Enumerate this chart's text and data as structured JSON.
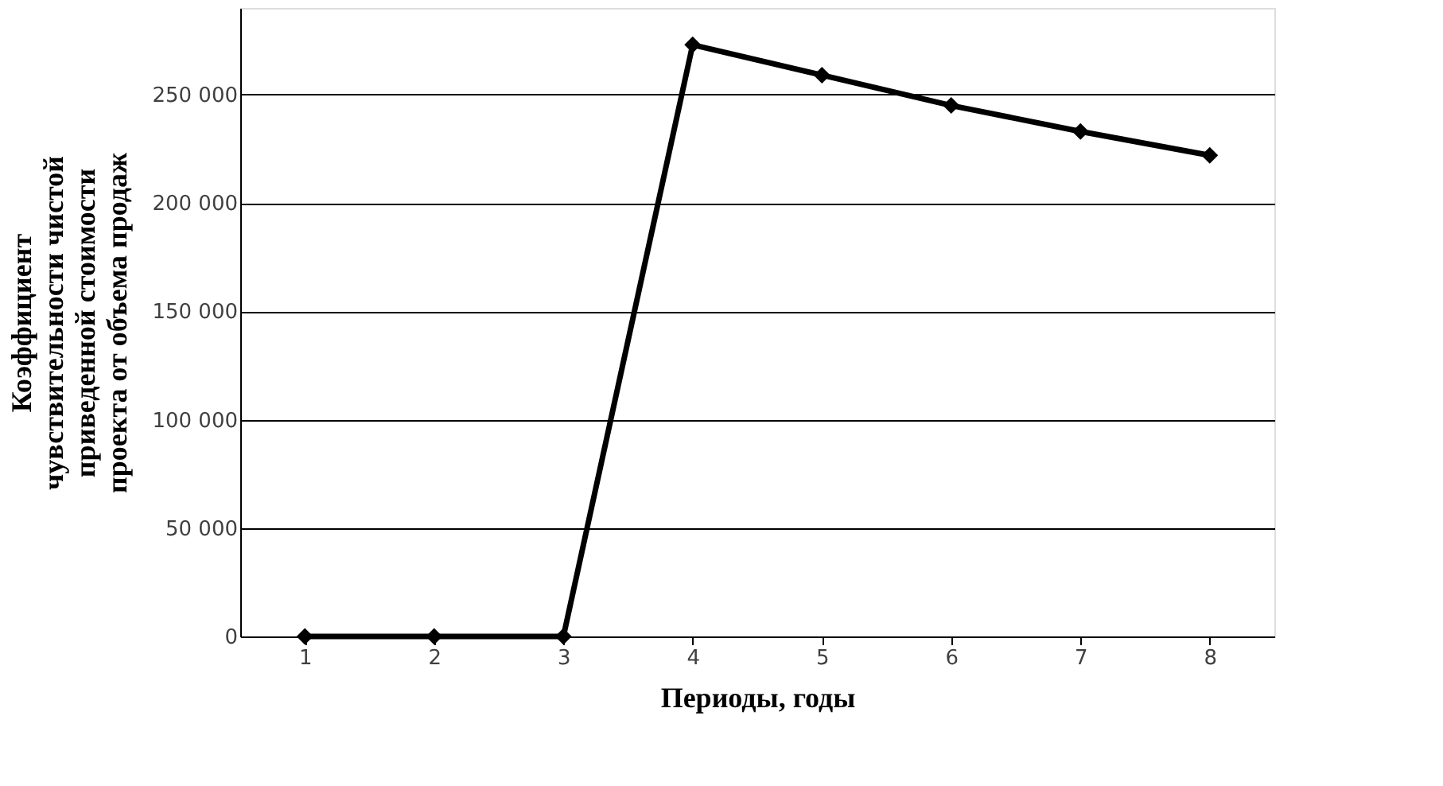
{
  "chart_data": {
    "type": "line",
    "xlabel": "Периоды, годы",
    "ylabel": "Коэффициент чувствительности чистой приведенной стоимости проекта от объема продаж",
    "categories": [
      "1",
      "2",
      "3",
      "4",
      "5",
      "6",
      "7",
      "8"
    ],
    "series": [
      {
        "color": "#000000",
        "values": [
          0,
          0,
          0,
          273000,
          259000,
          245000,
          233000,
          222000
        ]
      }
    ],
    "ylim": [
      0,
      290000
    ],
    "yticks": [
      0,
      {
        "value": 50000,
        "label": "50 000"
      },
      {
        "value": 100000,
        "label": "100 000"
      },
      {
        "value": 150000,
        "label": "150 000"
      },
      {
        "value": 200000,
        "label": "200 000"
      },
      {
        "value": 250000,
        "label": "250 000"
      }
    ],
    "grid": "y",
    "marker": "diamond",
    "line_style": "solid"
  }
}
